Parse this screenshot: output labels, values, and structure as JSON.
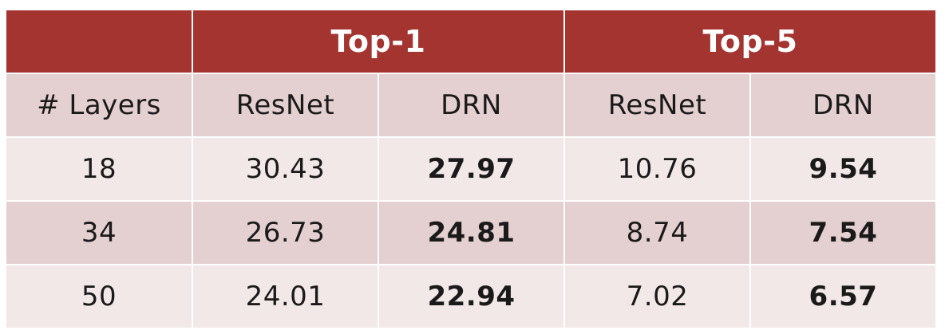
{
  "table": {
    "group_headers": [
      "Top-1",
      "Top-5"
    ],
    "sub_headers": [
      "# Layers",
      "ResNet",
      "DRN",
      "ResNet",
      "DRN"
    ],
    "rows": [
      {
        "layers": "18",
        "top1_resnet": "30.43",
        "top1_drn": "27.97",
        "top5_resnet": "10.76",
        "top5_drn": "9.54"
      },
      {
        "layers": "34",
        "top1_resnet": "26.73",
        "top1_drn": "24.81",
        "top5_resnet": "8.74",
        "top5_drn": "7.54"
      },
      {
        "layers": "50",
        "top1_resnet": "24.01",
        "top1_drn": "22.94",
        "top5_resnet": "7.02",
        "top5_drn": "6.57"
      }
    ],
    "colors": {
      "header": "#a33430",
      "row_dark": "#e5d0d1",
      "row_light": "#f2e8e8"
    }
  }
}
